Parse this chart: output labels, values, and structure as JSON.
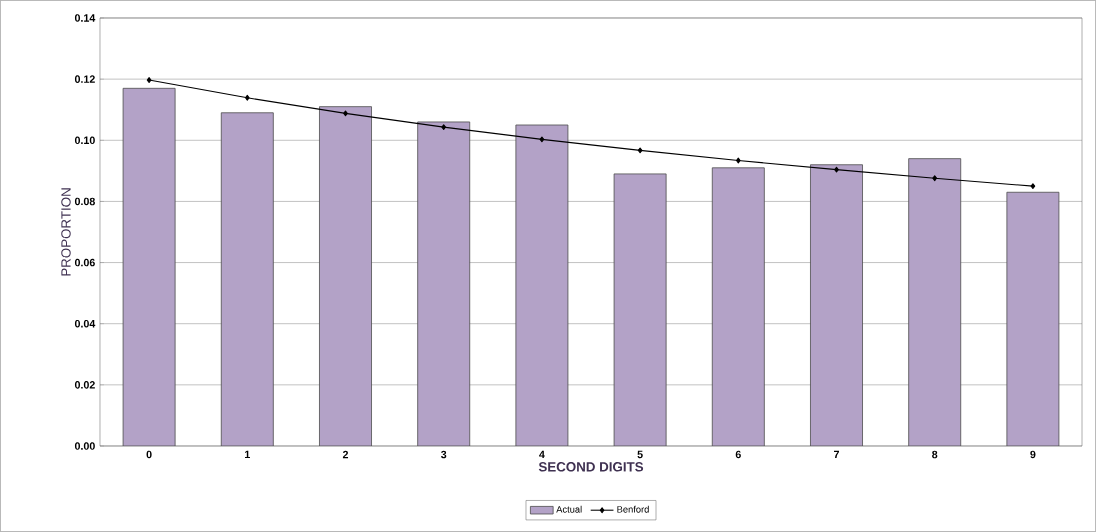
{
  "chart_data": {
    "type": "bar",
    "xlabel": "SECOND DIGITS",
    "ylabel": "PROPORTION",
    "categories": [
      "0",
      "1",
      "2",
      "3",
      "4",
      "5",
      "6",
      "7",
      "8",
      "9"
    ],
    "series": [
      {
        "name": "Actual",
        "color": "#b3a2c7",
        "values": [
          0.117,
          0.109,
          0.111,
          0.106,
          0.105,
          0.089,
          0.091,
          0.092,
          0.094,
          0.083
        ]
      },
      {
        "name": "Benford",
        "type": "line",
        "color": "#000000",
        "marker": "diamond",
        "values": [
          0.1197,
          0.1139,
          0.1088,
          0.1043,
          0.1003,
          0.0967,
          0.0934,
          0.0904,
          0.0876,
          0.085
        ]
      }
    ],
    "ylim": [
      0,
      0.14
    ],
    "yticks": [
      {
        "value": 0,
        "label": "0.00"
      },
      {
        "value": 0.02,
        "label": "0.02"
      },
      {
        "value": 0.04,
        "label": "0.04"
      },
      {
        "value": 0.06,
        "label": "0.06"
      },
      {
        "value": 0.08,
        "label": "0.08"
      },
      {
        "value": 0.1,
        "label": "0.10"
      },
      {
        "value": 0.12,
        "label": "0.12"
      },
      {
        "value": 0.14,
        "label": "0.14"
      }
    ],
    "grid": "y",
    "legend": "bottom"
  }
}
